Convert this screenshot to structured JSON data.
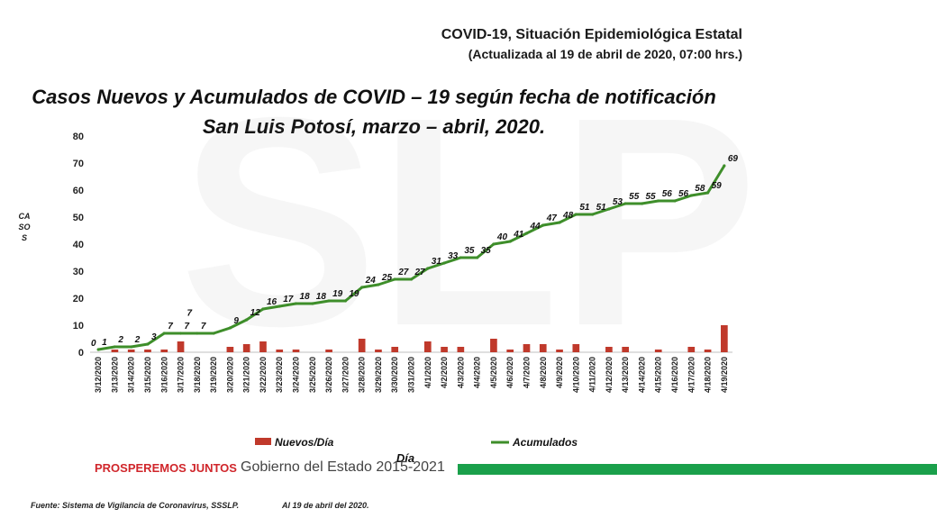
{
  "header": {
    "title": "COVID-19, Situación Epidemiológica Estatal",
    "subtitle": "(Actualizada al 19 de abril de 2020, 07:00 hrs.)"
  },
  "chart_data": {
    "type": "bar+line",
    "title": "Casos Nuevos y Acumulados de COVID – 19 según fecha de notificación",
    "subtitle": "San Luis Potosí, marzo – abril, 2020.",
    "xlabel": "Día",
    "ylabel": "CASOS",
    "ylim": [
      0,
      80
    ],
    "yticks": [
      0,
      10,
      20,
      30,
      40,
      50,
      60,
      70,
      80
    ],
    "grid": false,
    "legend_position": "bottom",
    "categories": [
      "3/12/2020",
      "3/13/2020",
      "3/14/2020",
      "3/15/2020",
      "3/16/2020",
      "3/17/2020",
      "3/18/2020",
      "3/19/2020",
      "3/20/2020",
      "3/21/2020",
      "3/22/2020",
      "3/23/2020",
      "3/24/2020",
      "3/25/2020",
      "3/26/2020",
      "3/27/2020",
      "3/28/2020",
      "3/29/2020",
      "3/30/2020",
      "3/31/2020",
      "4/1/2020",
      "4/2/2020",
      "4/3/2020",
      "4/4/2020",
      "4/5/2020",
      "4/6/2020",
      "4/7/2020",
      "4/8/2020",
      "4/9/2020",
      "4/10/2020",
      "4/11/2020",
      "4/12/2020",
      "4/13/2020",
      "4/14/2020",
      "4/15/2020",
      "4/16/2020",
      "4/17/2020",
      "4/18/2020",
      "4/19/2020"
    ],
    "series": [
      {
        "name": "Nuevos/Día",
        "type": "bar",
        "color": "#c0392b",
        "values": [
          0,
          1,
          1,
          1,
          1,
          4,
          0,
          0,
          2,
          3,
          4,
          1,
          1,
          0,
          1,
          0,
          5,
          1,
          2,
          0,
          4,
          2,
          2,
          0,
          5,
          1,
          3,
          3,
          1,
          3,
          0,
          2,
          2,
          0,
          1,
          0,
          2,
          1,
          10
        ]
      },
      {
        "name": "Acumulados",
        "type": "line",
        "color": "#3e8e2a",
        "values": [
          1,
          2,
          2,
          3,
          7,
          7,
          7,
          7,
          9,
          12,
          16,
          17,
          18,
          18,
          19,
          19,
          24,
          25,
          27,
          27,
          31,
          33,
          35,
          35,
          40,
          41,
          44,
          47,
          48,
          51,
          51,
          53,
          55,
          55,
          56,
          56,
          58,
          59,
          69
        ]
      }
    ],
    "line_labels": [
      "1",
      "2",
      "2",
      "3",
      "7",
      "7",
      "7",
      "",
      "9",
      "12",
      "16",
      "17",
      "18",
      "18",
      "19",
      "19",
      "24",
      "25",
      "27",
      "27",
      "31",
      "33",
      "35",
      "35",
      "40",
      "41",
      "44",
      "47",
      "48",
      "51",
      "51",
      "53",
      "55",
      "55",
      "56",
      "56",
      "58",
      "59",
      "69"
    ],
    "extra_labels": [
      "0",
      "7"
    ]
  },
  "legend": {
    "bars": "Nuevos/Día",
    "line": "Acumulados"
  },
  "footer": {
    "brand": "PROSPEREMOS JUNTOS",
    "government": "Gobierno del Estado 2015-2021",
    "source": "Fuente: Sistema de Vigilancia de Coronavirus, SSSLP.",
    "date": "Al 19 de abril del 2020."
  },
  "colors": {
    "accent_green": "#1aa04b",
    "brand_red": "#d0262b"
  }
}
